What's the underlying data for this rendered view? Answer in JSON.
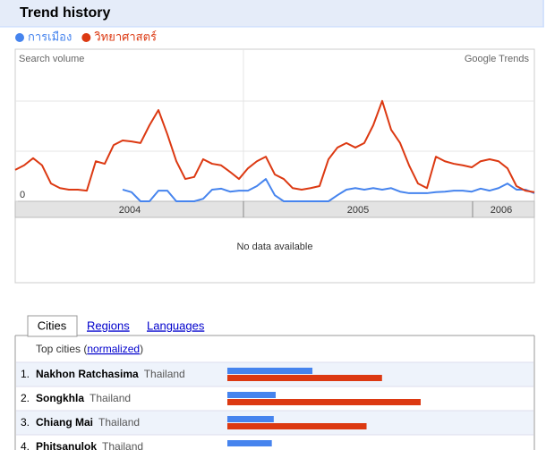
{
  "header": {
    "title": "Trend history"
  },
  "chart_data": {
    "type": "line",
    "series": [
      {
        "name": "การเมือง",
        "color": "#4684ee",
        "values": [
          null,
          null,
          null,
          null,
          null,
          null,
          null,
          null,
          null,
          null,
          null,
          null,
          0.23,
          0.18,
          0,
          0,
          0.21,
          0.21,
          0,
          0,
          0,
          0.05,
          0.23,
          0.25,
          0.19,
          0.21,
          0.21,
          0.3,
          0.44,
          0.12,
          0,
          0,
          0,
          0,
          0,
          0,
          0.12,
          0.23,
          0.26,
          0.23,
          0.26,
          0.23,
          0.26,
          0.19,
          0.16,
          0.16,
          0.16,
          0.18,
          0.19,
          0.21,
          0.21,
          0.19,
          0.25,
          0.21,
          0.26,
          0.35,
          0.23,
          0.23,
          0.16
        ]
      },
      {
        "name": "วิทยาศาสตร์",
        "color": "#dc3912",
        "values": [
          0.62,
          0.71,
          0.85,
          0.71,
          0.35,
          0.26,
          0.23,
          0.23,
          0.21,
          0.79,
          0.74,
          1.11,
          1.2,
          1.18,
          1.15,
          1.5,
          1.8,
          1.32,
          0.79,
          0.44,
          0.48,
          0.83,
          0.74,
          0.71,
          0.58,
          0.44,
          0.65,
          0.79,
          0.88,
          0.53,
          0.44,
          0.26,
          0.23,
          0.26,
          0.3,
          0.83,
          1.06,
          1.15,
          1.06,
          1.15,
          1.5,
          1.98,
          1.41,
          1.15,
          0.71,
          0.35,
          0.26,
          0.88,
          0.79,
          0.74,
          0.71,
          0.67,
          0.79,
          0.83,
          0.79,
          0.65,
          0.3,
          0.21,
          0.18
        ]
      }
    ],
    "y_axis_label": "Search volume",
    "watermark": "Google Trends",
    "ylim": [
      0,
      3
    ],
    "yticks": [
      0
    ],
    "x_labels": [
      "2004",
      "2005",
      "2006"
    ],
    "empty_message": "No data available"
  },
  "tabs": [
    "Cities",
    "Regions",
    "Languages"
  ],
  "cities": {
    "heading_prefix": "Top cities (",
    "heading_link": "normalized",
    "heading_suffix": ")",
    "xlim": [
      0,
      100
    ],
    "rows": [
      {
        "rank": "1.",
        "city": "Nakhon Ratchasima",
        "country": "Thailand",
        "values": [
          44,
          80
        ]
      },
      {
        "rank": "2.",
        "city": "Songkhla",
        "country": "Thailand",
        "values": [
          25,
          100
        ]
      },
      {
        "rank": "3.",
        "city": "Chiang Mai",
        "country": "Thailand",
        "values": [
          24,
          72
        ]
      },
      {
        "rank": "4.",
        "city": "Phitsanulok",
        "country": "Thailand",
        "values": [
          23,
          null
        ]
      }
    ]
  }
}
